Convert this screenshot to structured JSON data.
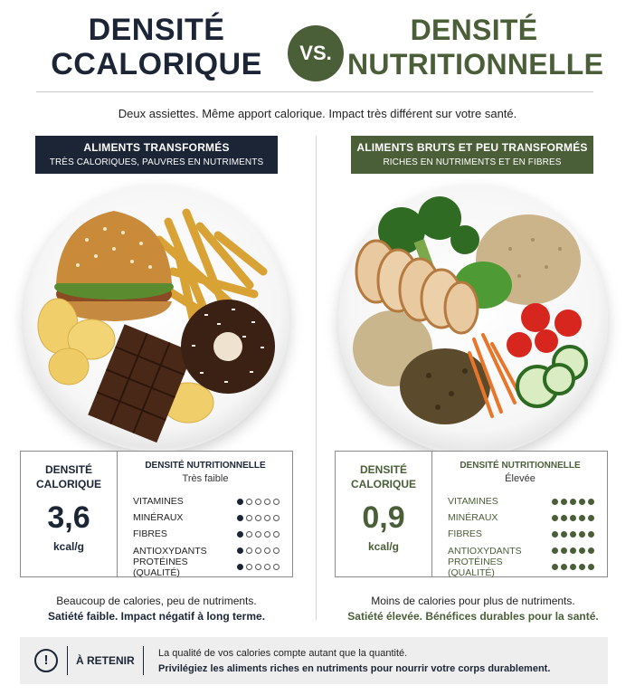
{
  "header": {
    "title_left_line1": "DENSITÉ",
    "title_left_line2": "CCALORIQUE",
    "vs": "VS.",
    "title_right_line1": "DENSITÉ",
    "title_right_line2": "NUTRITIONNELLE",
    "subtitle": "Deux assiettes. Même apport calorique. Impact très différent sur votre santé."
  },
  "colors": {
    "navy": "#1b2535",
    "olive_green": "#4a5e38"
  },
  "left": {
    "banner_title": "ALIMENTS TRANSFORMÉS",
    "banner_sub": "TRÈS CALORIQUES, PAUVRES EN NUTRIMENTS",
    "plate_image": "processed-food-plate",
    "caloric_label_line1": "DENSITÉ",
    "caloric_label_line2": "CALORIQUE",
    "caloric_value": "3,6",
    "caloric_unit": "kcal/g",
    "nutri_title": "DENSITÉ NUTRITIONNELLE",
    "nutri_level": "Très faible",
    "rows": [
      {
        "label": "VITAMINES",
        "rating": 1
      },
      {
        "label": "MINÉRAUX",
        "rating": 1
      },
      {
        "label": "FIBRES",
        "rating": 1
      },
      {
        "label": "ANTIOXYDANTS",
        "rating": 1
      },
      {
        "label": "PROTÉINES (QUALITÉ)",
        "rating": 1
      }
    ],
    "summary_line1": "Beaucoup de calories, peu de nutriments.",
    "summary_line2": "Satiété faible. Impact négatif à long terme."
  },
  "right": {
    "banner_title": "ALIMENTS BRUTS ET PEU TRANSFORMÉS",
    "banner_sub": "RICHES EN NUTRIMENTS ET EN FIBRES",
    "plate_image": "whole-food-plate",
    "caloric_label_line1": "DENSITÉ",
    "caloric_label_line2": "CALORIQUE",
    "caloric_value": "0,9",
    "caloric_unit": "kcal/g",
    "nutri_title": "DENSITÉ NUTRITIONNELLE",
    "nutri_level": "Élevée",
    "rows": [
      {
        "label": "VITAMINES",
        "rating": 5
      },
      {
        "label": "MINÉRAUX",
        "rating": 5
      },
      {
        "label": "FIBRES",
        "rating": 5
      },
      {
        "label": "ANTIOXYDANTS",
        "rating": 5
      },
      {
        "label": "PROTÉINES (QUALITÉ)",
        "rating": 5
      }
    ],
    "summary_line1": "Moins de calories pour plus de nutriments.",
    "summary_line2": "Satiété élevée. Bénéfices durables pour la santé."
  },
  "rating_max": 5,
  "footer": {
    "icon": "exclamation-circle-icon",
    "label": "À RETENIR",
    "text_line1": "La qualité de vos calories compte autant que la quantité.",
    "text_line2": "Privilégiez les aliments riches en nutriments pour nourrir votre corps durablement."
  }
}
